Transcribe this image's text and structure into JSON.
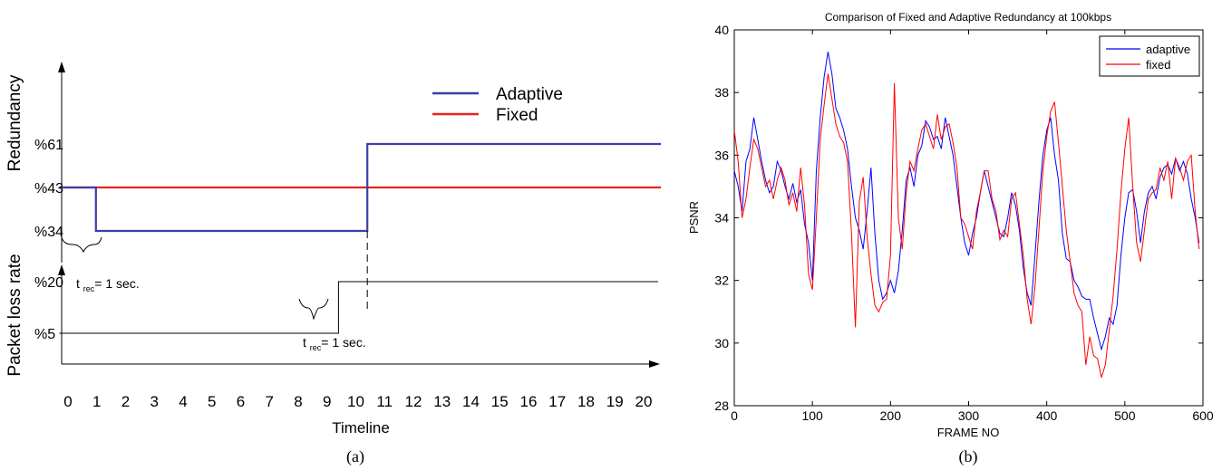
{
  "chart_data": [
    {
      "type": "line",
      "caption": "(a)",
      "title": "",
      "xlabel": "Timeline",
      "x_ticks": [
        0,
        1,
        2,
        3,
        4,
        5,
        6,
        7,
        8,
        9,
        10,
        11,
        12,
        13,
        14,
        15,
        16,
        17,
        18,
        19,
        20
      ],
      "xlim": [
        0,
        20
      ],
      "redundancy_panel": {
        "ylabel": "Redundancy",
        "y_tick_labels": [
          "%61",
          "%43",
          "%34"
        ],
        "y_tick_values": [
          61,
          43,
          34
        ],
        "series": [
          {
            "name": "Adaptive",
            "color": "#3b3fa8",
            "points": [
              [
                -0.3,
                43
              ],
              [
                0.97,
                43
              ],
              [
                0.97,
                34
              ],
              [
                10.4,
                34
              ],
              [
                10.4,
                61
              ],
              [
                20.6,
                61
              ]
            ]
          },
          {
            "name": "Fixed",
            "color": "#e8231f",
            "points": [
              [
                -0.3,
                43
              ],
              [
                20.6,
                43
              ]
            ]
          }
        ]
      },
      "loss_panel": {
        "ylabel": "Packet loss rate",
        "y_tick_labels": [
          "%20",
          "%5"
        ],
        "y_tick_values": [
          20,
          5
        ],
        "series": [
          {
            "name": "",
            "color": "#000000",
            "points": [
              [
                -0.3,
                5
              ],
              [
                9.4,
                5
              ],
              [
                9.4,
                20
              ],
              [
                20.5,
                20
              ]
            ]
          }
        ]
      },
      "annotations": [
        {
          "id": "trec1",
          "text_main": "t",
          "text_sub": "rec",
          "text_rest": "= 1 sec."
        },
        {
          "id": "trec2",
          "text_main": "t",
          "text_sub": "rec",
          "text_rest": "= 1 sec."
        }
      ],
      "legend": {
        "position": "top-right"
      }
    },
    {
      "type": "line",
      "caption": "(b)",
      "title": "Comparison of Fixed and Adaptive Redundancy at 100kbps",
      "xlabel": "FRAME NO",
      "ylabel": "PSNR",
      "xlim": [
        0,
        600
      ],
      "ylim": [
        28,
        40
      ],
      "x_ticks": [
        0,
        100,
        200,
        300,
        400,
        500,
        600
      ],
      "y_ticks": [
        28,
        30,
        32,
        34,
        36,
        38,
        40
      ],
      "legend": {
        "position": "top-right"
      },
      "series": [
        {
          "name": "adaptive",
          "color": "#0000ff",
          "x": [
            0,
            5,
            10,
            15,
            20,
            25,
            30,
            35,
            40,
            45,
            50,
            55,
            60,
            65,
            70,
            75,
            80,
            85,
            90,
            95,
            100,
            105,
            110,
            115,
            120,
            125,
            130,
            135,
            140,
            145,
            150,
            155,
            160,
            165,
            170,
            175,
            180,
            185,
            190,
            195,
            200,
            205,
            210,
            215,
            220,
            225,
            230,
            235,
            240,
            245,
            250,
            255,
            260,
            265,
            270,
            275,
            280,
            285,
            290,
            295,
            300,
            305,
            310,
            315,
            320,
            325,
            330,
            335,
            340,
            345,
            350,
            355,
            360,
            365,
            370,
            375,
            380,
            385,
            390,
            395,
            400,
            405,
            410,
            415,
            420,
            425,
            430,
            435,
            440,
            445,
            450,
            455,
            460,
            465,
            470,
            475,
            480,
            485,
            490,
            495,
            500,
            505,
            510,
            515,
            520,
            525,
            530,
            535,
            540,
            545,
            550,
            555,
            560,
            565,
            570,
            575,
            580,
            585,
            590,
            595
          ],
          "y": [
            35.5,
            35.0,
            34.2,
            35.8,
            36.2,
            37.2,
            36.5,
            35.8,
            35.2,
            34.8,
            35.0,
            35.8,
            35.5,
            35.0,
            34.6,
            35.1,
            34.5,
            34.9,
            33.8,
            33.2,
            32.0,
            35.5,
            37.2,
            38.5,
            39.3,
            38.6,
            37.5,
            37.2,
            36.8,
            36.2,
            35.0,
            34.0,
            33.6,
            33.0,
            34.2,
            35.6,
            33.5,
            32.0,
            31.4,
            31.6,
            32.0,
            31.6,
            32.3,
            33.6,
            35.2,
            35.6,
            35.0,
            36.0,
            36.3,
            37.1,
            36.9,
            36.5,
            36.6,
            36.2,
            37.2,
            36.6,
            36.0,
            35.0,
            34.0,
            33.2,
            32.8,
            33.5,
            34.0,
            34.8,
            35.5,
            35.0,
            34.5,
            34.0,
            33.5,
            33.4,
            34.0,
            34.8,
            34.4,
            33.6,
            32.4,
            31.6,
            31.2,
            32.8,
            34.5,
            36.0,
            36.8,
            37.2,
            36.0,
            35.2,
            33.5,
            32.7,
            32.6,
            32.0,
            31.8,
            31.5,
            31.4,
            31.4,
            30.8,
            30.3,
            29.8,
            30.2,
            30.8,
            30.6,
            31.2,
            32.8,
            34.0,
            34.8,
            34.9,
            34.2,
            33.2,
            34.2,
            34.8,
            35.0,
            34.6,
            35.3,
            35.6,
            35.7,
            35.4,
            35.9,
            35.5,
            35.8,
            35.4,
            34.6,
            34.0,
            33.2
          ]
        },
        {
          "name": "fixed",
          "color": "#ff0000",
          "x": [
            0,
            5,
            10,
            15,
            20,
            25,
            30,
            35,
            40,
            45,
            50,
            55,
            60,
            65,
            70,
            75,
            80,
            85,
            90,
            95,
            100,
            105,
            110,
            115,
            120,
            125,
            130,
            135,
            140,
            145,
            150,
            155,
            160,
            165,
            170,
            175,
            180,
            185,
            190,
            195,
            200,
            205,
            210,
            215,
            220,
            225,
            230,
            235,
            240,
            245,
            250,
            255,
            260,
            265,
            270,
            275,
            280,
            285,
            290,
            295,
            300,
            305,
            310,
            315,
            320,
            325,
            330,
            335,
            340,
            345,
            350,
            355,
            360,
            365,
            370,
            375,
            380,
            385,
            390,
            395,
            400,
            405,
            410,
            415,
            420,
            425,
            430,
            435,
            440,
            445,
            450,
            455,
            460,
            465,
            470,
            475,
            480,
            485,
            490,
            495,
            500,
            505,
            510,
            515,
            520,
            525,
            530,
            535,
            540,
            545,
            550,
            555,
            560,
            565,
            570,
            575,
            580,
            585,
            590,
            595
          ],
          "y": [
            36.8,
            35.8,
            34.0,
            34.6,
            35.6,
            36.5,
            36.2,
            35.6,
            35.0,
            35.2,
            34.6,
            35.2,
            35.6,
            35.2,
            34.4,
            34.8,
            34.2,
            35.6,
            34.4,
            32.2,
            31.7,
            34.0,
            36.5,
            37.6,
            38.6,
            37.8,
            37.0,
            36.6,
            36.4,
            35.8,
            33.5,
            30.5,
            34.5,
            35.3,
            33.4,
            32.2,
            31.2,
            31.0,
            31.3,
            31.4,
            32.8,
            38.3,
            34.0,
            33.0,
            34.8,
            35.8,
            35.5,
            36.2,
            36.8,
            37.0,
            36.6,
            36.2,
            37.3,
            36.5,
            36.9,
            37.0,
            36.4,
            35.6,
            34.0,
            33.8,
            33.4,
            33.0,
            34.2,
            34.8,
            35.5,
            35.5,
            34.6,
            34.2,
            33.3,
            33.6,
            33.4,
            34.6,
            34.8,
            33.8,
            32.8,
            31.4,
            30.6,
            31.8,
            33.6,
            35.5,
            36.6,
            37.4,
            37.7,
            36.4,
            35.0,
            33.6,
            32.6,
            31.6,
            31.2,
            31.0,
            29.3,
            30.2,
            29.6,
            29.5,
            28.9,
            29.3,
            30.4,
            31.5,
            33.0,
            34.8,
            36.2,
            37.2,
            35.0,
            33.2,
            32.6,
            33.6,
            34.6,
            34.8,
            34.9,
            35.6,
            35.2,
            35.8,
            34.6,
            35.9,
            35.6,
            35.2,
            35.8,
            36.0,
            34.2,
            33.0
          ]
        }
      ]
    }
  ]
}
